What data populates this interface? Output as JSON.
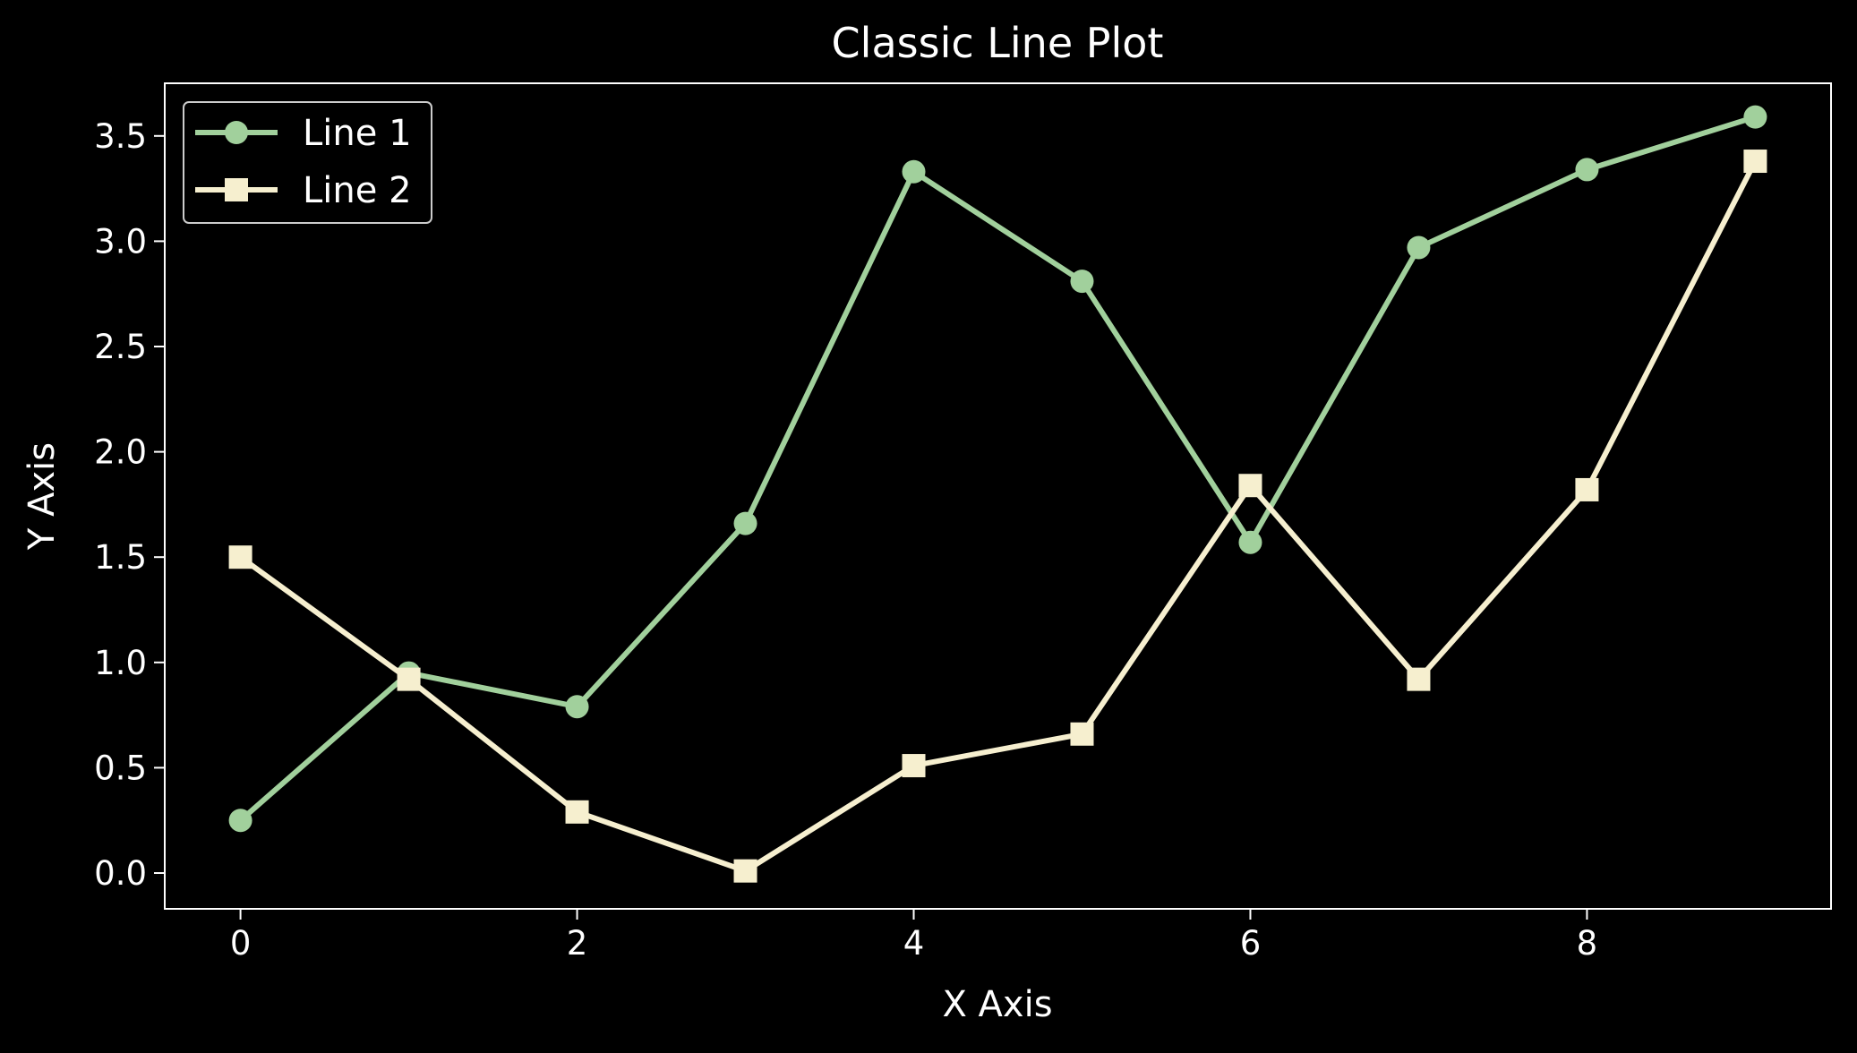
{
  "chart_data": {
    "type": "line",
    "title": "Classic Line Plot",
    "xlabel": "X Axis",
    "ylabel": "Y Axis",
    "x": [
      0,
      1,
      2,
      3,
      4,
      5,
      6,
      7,
      8,
      9
    ],
    "xlim": [
      -0.45,
      9.45
    ],
    "ylim": [
      -0.17,
      3.75
    ],
    "xticks": [
      "0",
      "2",
      "4",
      "6",
      "8"
    ],
    "yticks": [
      "0.0",
      "0.5",
      "1.0",
      "1.5",
      "2.0",
      "2.5",
      "3.0",
      "3.5"
    ],
    "grid": false,
    "legend_position": "upper-left",
    "background": "#000000",
    "foreground": "#ffffff",
    "series": [
      {
        "name": "Line 1",
        "marker": "circle",
        "color": "#a1d09c",
        "values": [
          0.25,
          0.95,
          0.79,
          1.66,
          3.33,
          2.81,
          1.57,
          2.97,
          3.34,
          3.59
        ]
      },
      {
        "name": "Line 2",
        "marker": "square",
        "color": "#f6efcf",
        "values": [
          1.5,
          0.92,
          0.29,
          0.01,
          0.51,
          0.66,
          1.84,
          0.92,
          1.82,
          3.38
        ]
      }
    ]
  }
}
